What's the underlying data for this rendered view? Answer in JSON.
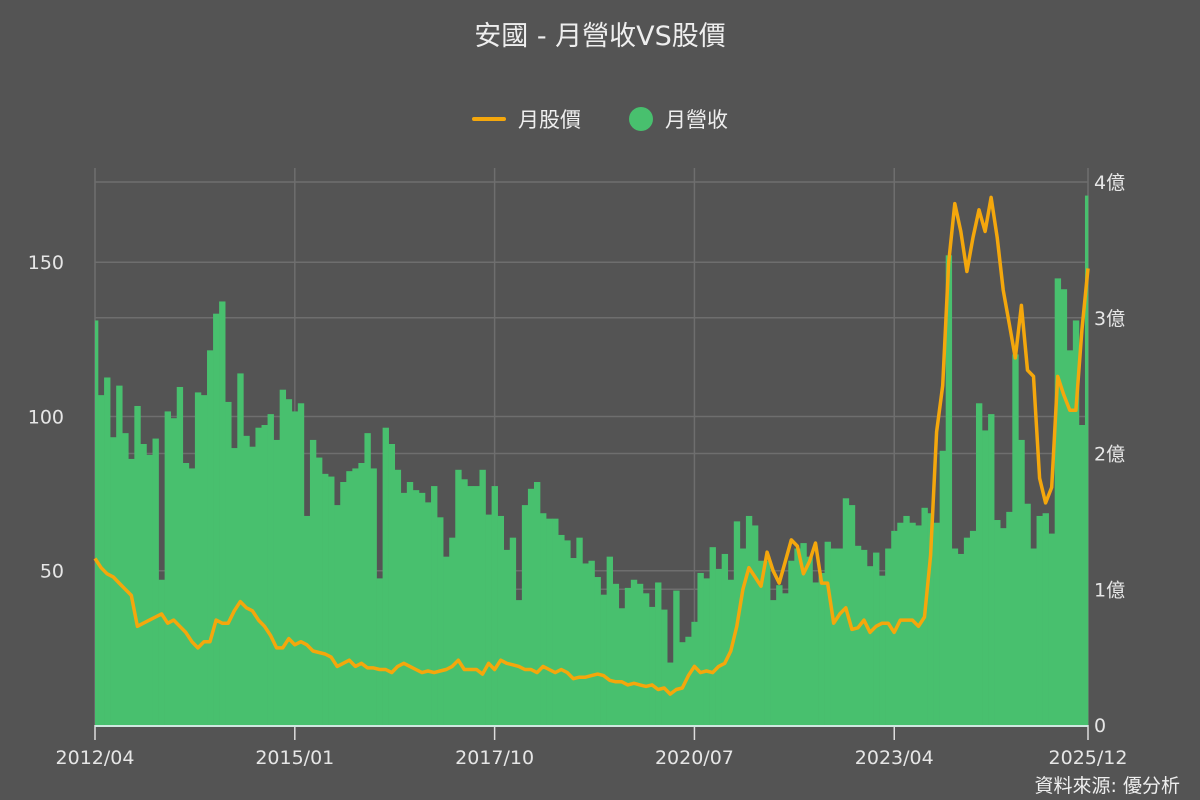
{
  "title": "安國 - 月營收VS股價",
  "source": "資料來源: 優分析",
  "colors": {
    "background": "#545454",
    "revenue": "#48c06e",
    "price": "#f4a70c",
    "grid": "#6e6e6e",
    "text": "#e6e6e6"
  },
  "chart_data": {
    "type": "bar+line",
    "title": "安國 - 月營收VS股價",
    "legend": {
      "placement": "top",
      "entries": [
        "月股價",
        "月營收"
      ]
    },
    "grid": true,
    "x_ticks": [
      "2012/04",
      "2015/01",
      "2017/10",
      "2020/07",
      "2023/04",
      "2025/12"
    ],
    "left_axis": {
      "ticks": [
        50,
        100,
        150
      ],
      "ylim": [
        0,
        176
      ]
    },
    "right_axis": {
      "ticks": [
        0,
        1,
        2,
        3,
        4
      ],
      "tick_labels": [
        "0",
        "1億",
        "2億",
        "3億",
        "4億"
      ],
      "ylim": [
        0,
        4
      ],
      "unit": "億"
    },
    "x": [
      "2012/04",
      "2012/05",
      "2012/06",
      "2012/07",
      "2012/08",
      "2012/09",
      "2012/10",
      "2012/11",
      "2012/12",
      "2013/01",
      "2013/02",
      "2013/03",
      "2013/04",
      "2013/05",
      "2013/06",
      "2013/07",
      "2013/08",
      "2013/09",
      "2013/10",
      "2013/11",
      "2013/12",
      "2014/01",
      "2014/02",
      "2014/03",
      "2014/04",
      "2014/05",
      "2014/06",
      "2014/07",
      "2014/08",
      "2014/09",
      "2014/10",
      "2014/11",
      "2014/12",
      "2015/01",
      "2015/02",
      "2015/03",
      "2015/04",
      "2015/05",
      "2015/06",
      "2015/07",
      "2015/08",
      "2015/09",
      "2015/10",
      "2015/11",
      "2015/12",
      "2016/01",
      "2016/02",
      "2016/03",
      "2016/04",
      "2016/05",
      "2016/06",
      "2016/07",
      "2016/08",
      "2016/09",
      "2016/10",
      "2016/11",
      "2016/12",
      "2017/01",
      "2017/02",
      "2017/03",
      "2017/04",
      "2017/05",
      "2017/06",
      "2017/07",
      "2017/08",
      "2017/09",
      "2017/10",
      "2017/11",
      "2017/12",
      "2018/01",
      "2018/02",
      "2018/03",
      "2018/04",
      "2018/05",
      "2018/06",
      "2018/07",
      "2018/08",
      "2018/09",
      "2018/10",
      "2018/11",
      "2018/12",
      "2019/01",
      "2019/02",
      "2019/03",
      "2019/04",
      "2019/05",
      "2019/06",
      "2019/07",
      "2019/08",
      "2019/09",
      "2019/10",
      "2019/11",
      "2019/12",
      "2020/01",
      "2020/02",
      "2020/03",
      "2020/04",
      "2020/05",
      "2020/06",
      "2020/07",
      "2020/08",
      "2020/09",
      "2020/10",
      "2020/11",
      "2020/12",
      "2021/01",
      "2021/02",
      "2021/03",
      "2021/04",
      "2021/05",
      "2021/06",
      "2021/07",
      "2021/08",
      "2021/09",
      "2021/10",
      "2021/11",
      "2021/12",
      "2022/01",
      "2022/02",
      "2022/03",
      "2022/04",
      "2022/05",
      "2022/06",
      "2022/07",
      "2022/08",
      "2022/09",
      "2022/10",
      "2022/11",
      "2022/12",
      "2023/01",
      "2023/02",
      "2023/03",
      "2023/04",
      "2023/05",
      "2023/06",
      "2023/07",
      "2023/08",
      "2023/09",
      "2023/10",
      "2023/11",
      "2023/12",
      "2024/01",
      "2024/02",
      "2024/03",
      "2024/04",
      "2024/05",
      "2024/06",
      "2024/07",
      "2024/08",
      "2024/09",
      "2024/10",
      "2024/11",
      "2024/12",
      "2025/01",
      "2025/02",
      "2025/03",
      "2025/04",
      "2025/05",
      "2025/06",
      "2025/07",
      "2025/08",
      "2025/09",
      "2025/10",
      "2025/11",
      "2025/12"
    ],
    "series": [
      {
        "name": "月營收",
        "type": "bar",
        "axis": "right",
        "values": [
          2.98,
          2.43,
          2.56,
          2.12,
          2.5,
          2.15,
          1.96,
          2.35,
          2.07,
          1.99,
          2.11,
          1.07,
          2.31,
          2.26,
          2.49,
          1.93,
          1.89,
          2.45,
          2.43,
          2.76,
          3.03,
          3.12,
          2.38,
          2.04,
          2.59,
          2.13,
          2.05,
          2.19,
          2.21,
          2.29,
          2.1,
          2.47,
          2.4,
          2.31,
          2.37,
          1.54,
          2.1,
          1.97,
          1.85,
          1.83,
          1.62,
          1.79,
          1.87,
          1.89,
          1.93,
          2.15,
          1.89,
          1.08,
          2.19,
          2.07,
          1.88,
          1.71,
          1.79,
          1.73,
          1.71,
          1.64,
          1.76,
          1.53,
          1.24,
          1.38,
          1.88,
          1.81,
          1.76,
          1.76,
          1.88,
          1.55,
          1.76,
          1.54,
          1.29,
          1.38,
          0.92,
          1.62,
          1.74,
          1.79,
          1.56,
          1.52,
          1.52,
          1.4,
          1.36,
          1.23,
          1.38,
          1.19,
          1.21,
          1.09,
          0.96,
          1.24,
          1.04,
          0.86,
          1.01,
          1.07,
          1.04,
          0.97,
          0.87,
          1.05,
          0.85,
          0.46,
          0.99,
          0.61,
          0.65,
          0.76,
          1.12,
          1.08,
          1.31,
          1.15,
          1.26,
          1.07,
          1.5,
          1.3,
          1.54,
          1.47,
          1.21,
          1.21,
          0.92,
          1.03,
          0.97,
          1.21,
          1.3,
          1.34,
          1.24,
          1.05,
          1.12,
          1.35,
          1.3,
          1.3,
          1.67,
          1.62,
          1.32,
          1.29,
          1.17,
          1.27,
          1.1,
          1.3,
          1.43,
          1.49,
          1.54,
          1.49,
          1.47,
          1.6,
          1.56,
          1.49,
          2.02,
          3.46,
          1.3,
          1.26,
          1.38,
          1.43,
          2.37,
          2.17,
          2.29,
          1.51,
          1.45,
          1.57,
          2.73,
          2.1,
          1.63,
          1.3,
          1.54,
          1.56,
          1.41,
          3.29,
          3.21,
          2.76,
          2.98,
          2.21,
          3.9
        ]
      },
      {
        "name": "月股價",
        "type": "line",
        "axis": "left",
        "values": [
          54,
          51,
          49,
          48,
          46,
          44,
          42,
          32,
          33,
          34,
          35,
          36,
          33,
          34,
          32,
          30,
          27,
          25,
          27,
          27,
          34,
          33,
          33,
          37,
          40,
          38,
          37,
          34,
          32,
          29,
          25,
          25,
          28,
          26,
          27,
          26,
          24,
          23.5,
          23,
          22,
          19,
          20,
          21,
          19,
          20,
          18.5,
          18.5,
          18,
          18,
          17,
          19,
          20,
          19,
          18,
          17,
          17.5,
          17,
          17.5,
          18,
          19,
          21,
          18,
          18,
          18,
          16.5,
          20,
          18,
          21,
          20,
          19.5,
          19,
          18,
          18,
          17,
          19,
          18,
          17,
          18,
          17,
          15,
          15.5,
          15.5,
          16,
          16.5,
          16,
          14.5,
          14,
          14,
          13,
          13.5,
          13,
          12.5,
          13,
          11.5,
          12,
          10,
          11.5,
          12,
          16,
          19,
          17,
          17.5,
          17,
          19,
          20,
          24,
          32,
          44,
          51,
          48,
          45,
          56,
          50,
          46,
          53,
          60,
          58,
          49,
          53,
          59,
          46,
          46,
          33,
          36,
          38,
          31,
          31.5,
          34,
          30,
          32,
          33,
          33,
          30,
          34,
          34,
          34,
          32,
          35,
          55,
          95,
          110,
          150,
          169,
          160,
          147,
          158,
          167,
          160,
          171,
          158,
          141,
          130,
          119,
          136,
          115,
          113,
          80,
          72,
          77,
          113,
          107,
          102,
          102,
          128,
          148
        ]
      }
    ]
  }
}
